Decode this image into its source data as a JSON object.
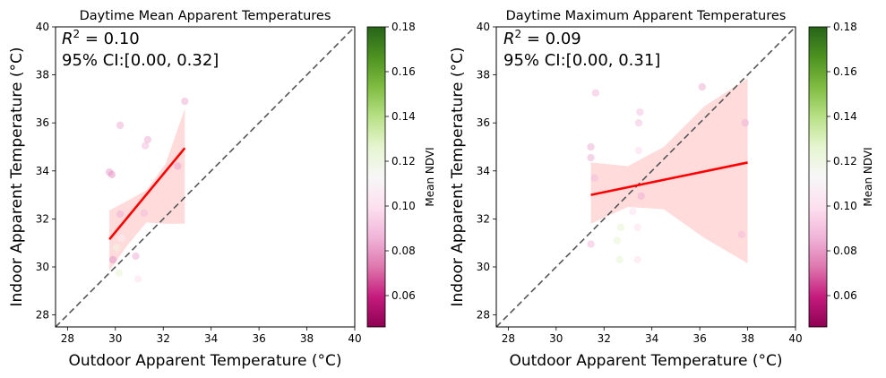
{
  "colors": {
    "regression_line": "#ff0000",
    "ci_band": "#ffd7d7",
    "identity_line": "#555555",
    "colormap": [
      "#8e0152",
      "#c51b7d",
      "#de77ae",
      "#f1b6da",
      "#fde0ef",
      "#f7f7f7",
      "#e6f5d0",
      "#b8e186",
      "#7fbc41",
      "#4d9221",
      "#276419"
    ]
  },
  "chart_data": [
    {
      "type": "scatter",
      "title": "Daytime Mean Apparent Temperatures",
      "xlabel": "Outdoor Apparent Temperature (°C)",
      "ylabel": "Indoor Apparent Temperature (°C)",
      "xlim": [
        27.5,
        40
      ],
      "ylim": [
        27.5,
        40
      ],
      "xticks": [
        "28",
        "30",
        "32",
        "34",
        "36",
        "38",
        "40"
      ],
      "yticks": [
        "28",
        "30",
        "32",
        "34",
        "36",
        "38",
        "40"
      ],
      "stats_line1_prefix": "R",
      "stats_line1_sup": "2",
      "stats_line1_value": " = 0.10",
      "stats_line2": "95% CI:[0.00, 0.32]",
      "colorbar_label": "Mean NDVI",
      "colorbar_range": [
        0.046,
        0.18
      ],
      "colorbar_ticks": [
        "0.06",
        "0.08",
        "0.10",
        "0.12",
        "0.14",
        "0.16",
        "0.18"
      ],
      "regression": {
        "x": [
          29.75,
          32.9
        ],
        "y": [
          31.15,
          34.95
        ]
      },
      "ci_band": {
        "x": [
          29.75,
          30.5,
          31.3,
          32.1,
          32.9
        ],
        "upper": [
          32.35,
          32.75,
          33.2,
          34.3,
          36.6
        ],
        "lower": [
          29.85,
          30.9,
          31.85,
          31.8,
          31.8
        ]
      },
      "points": [
        {
          "x": 30.2,
          "y": 35.9,
          "ndvi": 0.085
        },
        {
          "x": 29.75,
          "y": 33.95,
          "ndvi": 0.082
        },
        {
          "x": 29.85,
          "y": 33.85,
          "ndvi": 0.08
        },
        {
          "x": 31.25,
          "y": 35.05,
          "ndvi": 0.088
        },
        {
          "x": 31.35,
          "y": 35.3,
          "ndvi": 0.085
        },
        {
          "x": 32.9,
          "y": 36.9,
          "ndvi": 0.085
        },
        {
          "x": 32.6,
          "y": 34.2,
          "ndvi": 0.082
        },
        {
          "x": 30.2,
          "y": 32.2,
          "ndvi": 0.085
        },
        {
          "x": 31.2,
          "y": 32.25,
          "ndvi": 0.088
        },
        {
          "x": 30.25,
          "y": 31.2,
          "ndvi": 0.108
        },
        {
          "x": 30.05,
          "y": 30.8,
          "ndvi": 0.12
        },
        {
          "x": 29.9,
          "y": 30.3,
          "ndvi": 0.08
        },
        {
          "x": 30.85,
          "y": 30.45,
          "ndvi": 0.085
        },
        {
          "x": 30.15,
          "y": 29.75,
          "ndvi": 0.125
        },
        {
          "x": 30.95,
          "y": 29.5,
          "ndvi": 0.1
        }
      ]
    },
    {
      "type": "scatter",
      "title": "Daytime Maximum Apparent Temperatures",
      "xlabel": "Outdoor Apparent Temperature (°C)",
      "ylabel": "Indoor Apparent Temperature (°C)",
      "xlim": [
        27.5,
        40
      ],
      "ylim": [
        27.5,
        40
      ],
      "xticks": [
        "28",
        "30",
        "32",
        "34",
        "36",
        "38",
        "40"
      ],
      "yticks": [
        "28",
        "30",
        "32",
        "34",
        "36",
        "38",
        "40"
      ],
      "stats_line1_prefix": "R",
      "stats_line1_sup": "2",
      "stats_line1_value": " = 0.09",
      "stats_line2": "95% CI:[0.00, 0.31]",
      "colorbar_label": "Mean NDVI",
      "colorbar_range": [
        0.046,
        0.18
      ],
      "colorbar_ticks": [
        "0.06",
        "0.08",
        "0.10",
        "0.12",
        "0.14",
        "0.16",
        "0.18"
      ],
      "regression": {
        "x": [
          31.45,
          38.0
        ],
        "y": [
          33.0,
          34.35
        ]
      },
      "ci_band": {
        "x": [
          31.45,
          33.0,
          34.5,
          36.2,
          38.0
        ],
        "upper": [
          34.35,
          34.2,
          35.0,
          36.7,
          37.85
        ],
        "lower": [
          31.8,
          32.5,
          32.4,
          31.2,
          30.15
        ]
      },
      "points": [
        {
          "x": 31.65,
          "y": 37.25,
          "ndvi": 0.088
        },
        {
          "x": 36.1,
          "y": 37.5,
          "ndvi": 0.085
        },
        {
          "x": 33.5,
          "y": 36.45,
          "ndvi": 0.09
        },
        {
          "x": 33.45,
          "y": 36.0,
          "ndvi": 0.09
        },
        {
          "x": 37.9,
          "y": 36.0,
          "ndvi": 0.085
        },
        {
          "x": 31.45,
          "y": 35.0,
          "ndvi": 0.085
        },
        {
          "x": 31.45,
          "y": 34.55,
          "ndvi": 0.085
        },
        {
          "x": 33.45,
          "y": 34.85,
          "ndvi": 0.098
        },
        {
          "x": 31.6,
          "y": 33.7,
          "ndvi": 0.088
        },
        {
          "x": 33.55,
          "y": 32.95,
          "ndvi": 0.085
        },
        {
          "x": 32.7,
          "y": 31.65,
          "ndvi": 0.125
        },
        {
          "x": 33.4,
          "y": 31.65,
          "ndvi": 0.1
        },
        {
          "x": 32.55,
          "y": 31.1,
          "ndvi": 0.125
        },
        {
          "x": 31.45,
          "y": 30.95,
          "ndvi": 0.088
        },
        {
          "x": 32.65,
          "y": 30.3,
          "ndvi": 0.125
        },
        {
          "x": 33.4,
          "y": 30.3,
          "ndvi": 0.1
        },
        {
          "x": 37.75,
          "y": 31.35,
          "ndvi": 0.088
        },
        {
          "x": 33.2,
          "y": 32.3,
          "ndvi": 0.1
        }
      ]
    }
  ]
}
